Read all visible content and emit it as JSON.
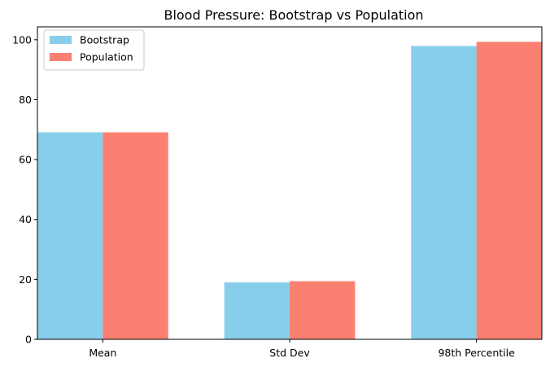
{
  "chart_data": {
    "type": "bar",
    "title": "Blood Pressure: Bootstrap vs Population",
    "xlabel": "",
    "ylabel": "",
    "categories": [
      "Mean",
      "Std Dev",
      "98th Percentile"
    ],
    "series": [
      {
        "name": "Bootstrap",
        "color": "#87CEEB",
        "values": [
          69.1,
          19.0,
          97.9
        ]
      },
      {
        "name": "Population",
        "color": "#FA8072",
        "values": [
          69.1,
          19.4,
          99.3
        ]
      }
    ],
    "yticks": [
      0,
      20,
      40,
      60,
      80,
      100
    ],
    "ytick_labels": [
      "0",
      "20",
      "40",
      "60",
      "80",
      "100"
    ],
    "ylim": [
      0,
      104.3
    ],
    "grid": false,
    "legend_position": "upper-left"
  }
}
